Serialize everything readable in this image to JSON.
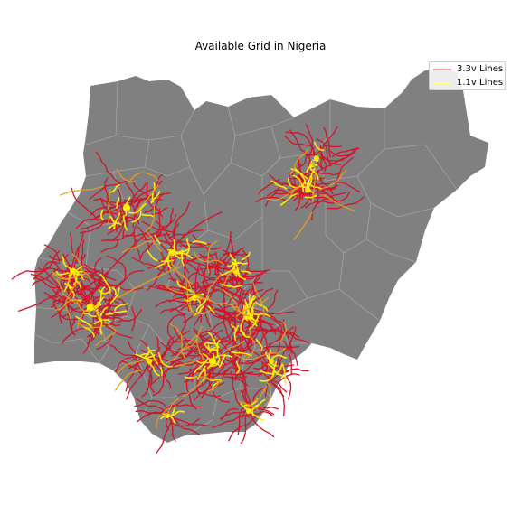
{
  "title": "Available Grid in Nigeria",
  "legend": {
    "entries": [
      {
        "label": "3.3v Lines",
        "color": "#e8a0a0"
      },
      {
        "label": "1.1v Lines",
        "color": "#ffff80"
      }
    ]
  },
  "map": {
    "country_color": "#808080",
    "boundary_color": "#b0b0b0",
    "line_colors": {
      "3.3v": "#d0142a",
      "1.1v": "#ffee00",
      "overlap": "#e0a020"
    }
  }
}
